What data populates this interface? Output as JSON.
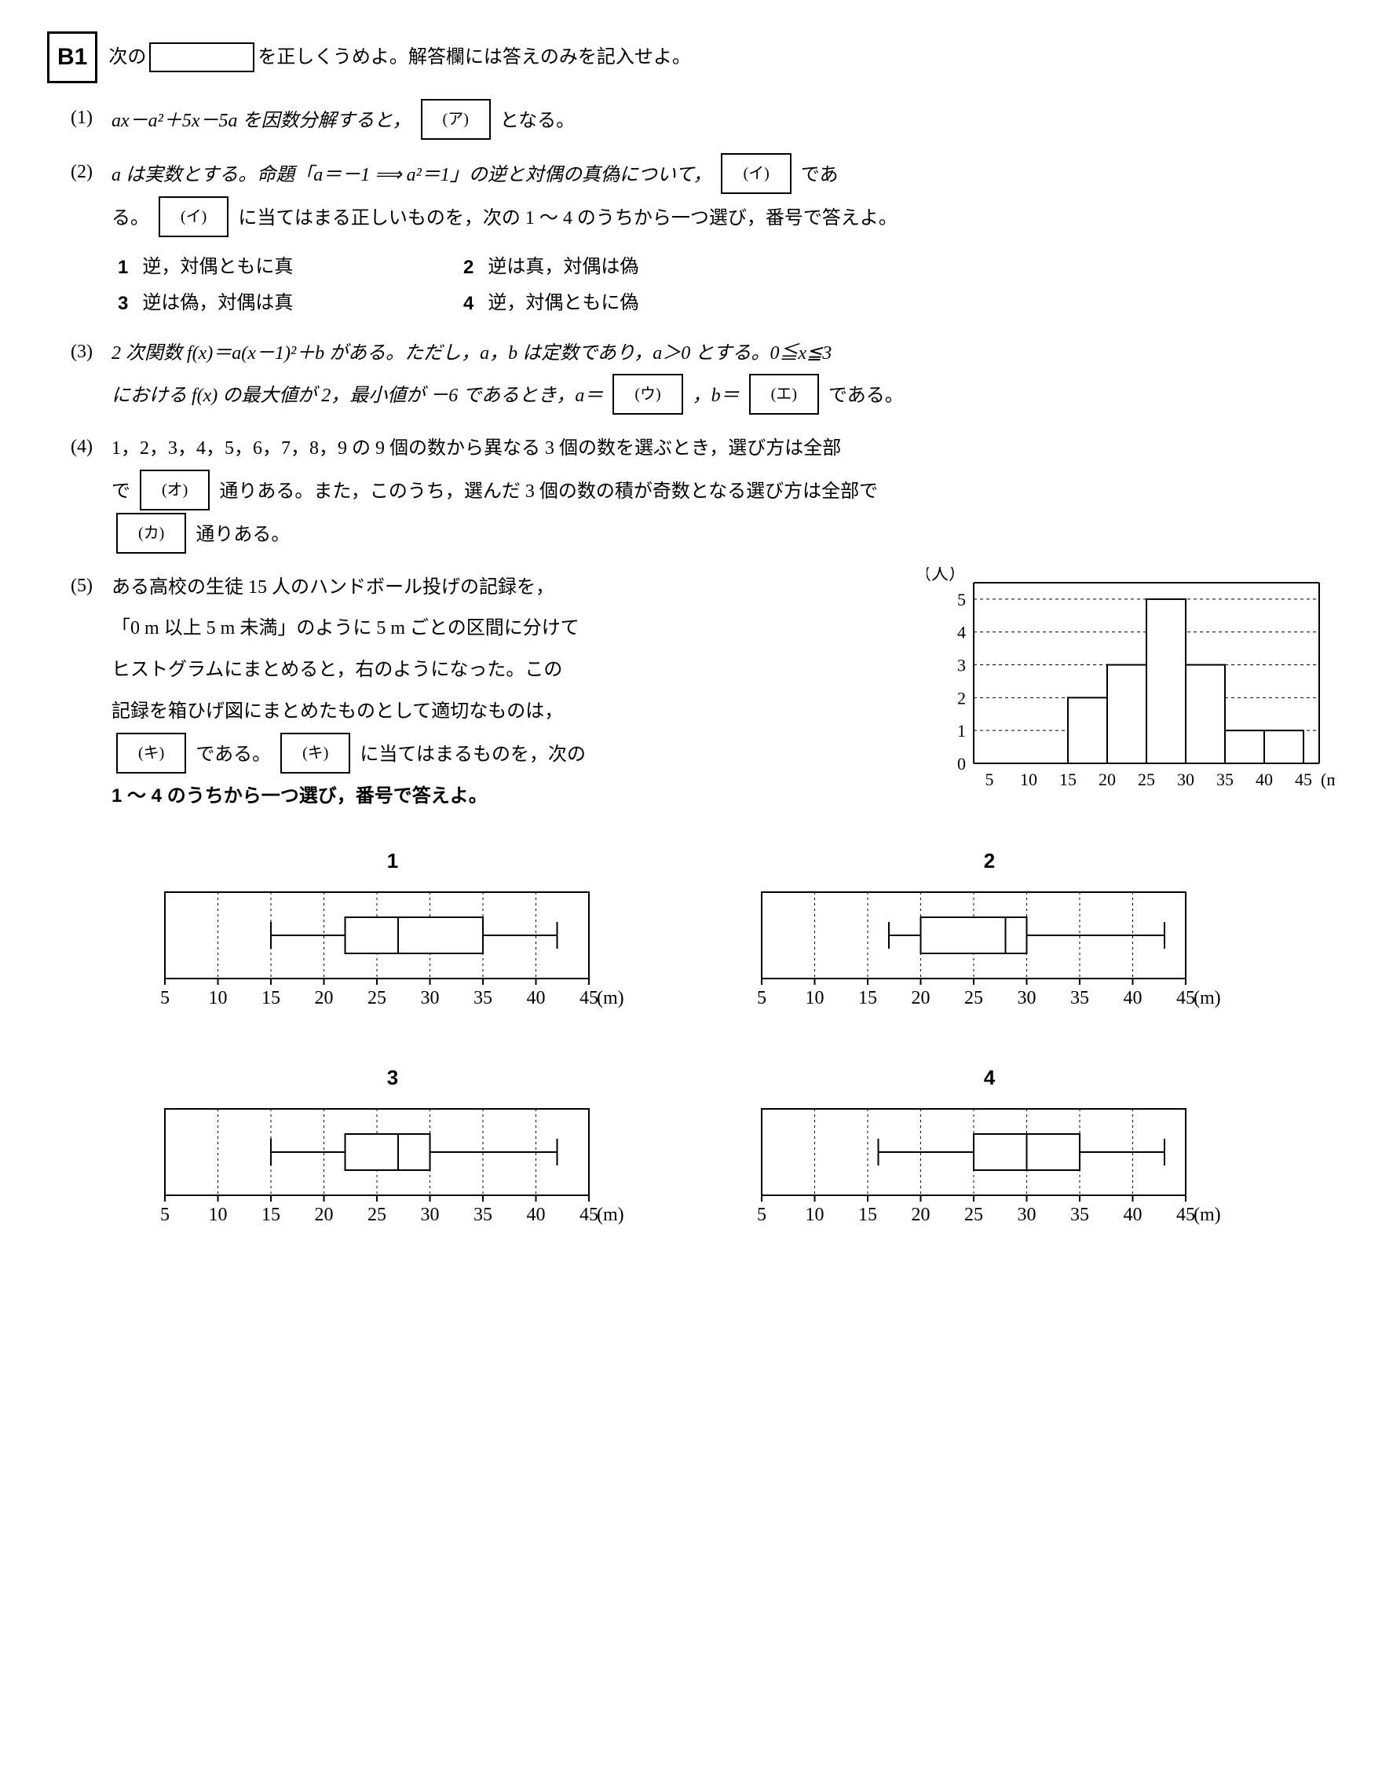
{
  "title_box": "B1",
  "intro_a": "次の",
  "intro_b": "を正しくうめよ。解答欄には答えのみを記入せよ。",
  "q1": {
    "num": "(1)",
    "pre": "ax－a²＋5x－5a を因数分解すると，",
    "box": "(ア)",
    "post": "となる。"
  },
  "q2": {
    "num": "(2)",
    "line1a": "a は実数とする。命題「a＝－1 ⟹ a²＝1」の逆と対偶の真偽について，",
    "box1": "(イ)",
    "line1b": "であ",
    "line2a": "る。",
    "box2": "(イ)",
    "line2b": "に当てはまる正しいものを，次の 1 〜 4 のうちから一つ選び，番号で答えよ。",
    "opts": [
      {
        "n": "1",
        "t": "逆，対偶ともに真"
      },
      {
        "n": "2",
        "t": "逆は真，対偶は偽"
      },
      {
        "n": "3",
        "t": "逆は偽，対偶は真"
      },
      {
        "n": "4",
        "t": "逆，対偶ともに偽"
      }
    ]
  },
  "q3": {
    "num": "(3)",
    "l1": "2 次関数  f(x)＝a(x－1)²＋b がある。ただし，a，b は定数であり，a＞0 とする。0≦x≦3",
    "l2a": "における f(x) の最大値が 2，最小値が －6 であるとき，a＝",
    "boxU": "(ウ)",
    "mid": "，b＝",
    "boxE": "(エ)",
    "l2b": "である。"
  },
  "q4": {
    "num": "(4)",
    "l1": "1，2，3，4，5，6，7，8，9 の 9 個の数から異なる 3 個の数を選ぶとき，選び方は全部",
    "l2a": "で",
    "boxO": "(オ)",
    "l2b": "通りある。また，このうち，選んだ 3 個の数の積が奇数となる選び方は全部で",
    "boxKa": "(カ)",
    "l3": "通りある。"
  },
  "q5": {
    "num": "(5)",
    "text_lines": [
      "ある高校の生徒 15 人のハンドボール投げの記録を，",
      "「0 m 以上 5 m 未満」のように 5 m ごとの区間に分けて",
      "ヒストグラムにまとめると，右のようになった。この",
      "記録を箱ひげ図にまとめたものとして適切なものは，"
    ],
    "boxKi": "(キ)",
    "mid": "である。",
    "boxKi2": "(キ)",
    "tail": "に当てはまるものを，次の",
    "last": "1 〜 4 のうちから一つ選び，番号で答えよ。"
  },
  "histogram": {
    "type": "histogram",
    "y_label": "（人）",
    "x_unit": "(m)",
    "x_ticks": [
      5,
      10,
      15,
      20,
      25,
      30,
      35,
      40,
      45
    ],
    "y_ticks": [
      0,
      1,
      2,
      3,
      4,
      5
    ],
    "ylim": [
      0,
      5.5
    ],
    "bars": [
      {
        "from": 15,
        "to": 20,
        "h": 2
      },
      {
        "from": 20,
        "to": 25,
        "h": 3
      },
      {
        "from": 25,
        "to": 30,
        "h": 5
      },
      {
        "from": 30,
        "to": 35,
        "h": 3
      },
      {
        "from": 35,
        "to": 40,
        "h": 1
      },
      {
        "from": 40,
        "to": 45,
        "h": 1
      }
    ],
    "bar_fill": "#ffffff",
    "stroke": "#000000",
    "grid_dash": "4,4",
    "xlim": [
      3,
      47
    ]
  },
  "boxplots": {
    "x_ticks": [
      5,
      10,
      15,
      20,
      25,
      30,
      35,
      40,
      45
    ],
    "x_unit": "(m)",
    "stroke": "#000000",
    "grid_dash": "3,4",
    "items": [
      {
        "n": "1",
        "min": 15,
        "q1": 22,
        "med": 27,
        "q3": 35,
        "max": 42
      },
      {
        "n": "2",
        "min": 17,
        "q1": 20,
        "med": 28,
        "q3": 30,
        "max": 43
      },
      {
        "n": "3",
        "min": 15,
        "q1": 22,
        "med": 27,
        "q3": 30,
        "max": 42
      },
      {
        "n": "4",
        "min": 16,
        "q1": 25,
        "med": 30,
        "q3": 35,
        "max": 43
      }
    ]
  }
}
